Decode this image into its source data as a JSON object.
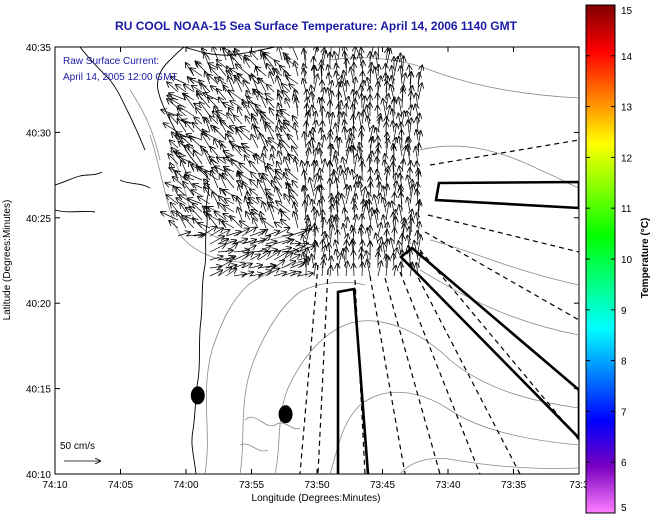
{
  "chart_data": {
    "type": "map",
    "title": "RU COOL  NOAA-15  Sea Surface Temperature:  April 14, 2006 1140 GMT",
    "xlabel": "Longitude (Degrees:Minutes)",
    "ylabel": "Latitude (Degrees:Minutes)",
    "x_ticks": [
      "74:10",
      "74:05",
      "74:00",
      "73:55",
      "73:50",
      "73:45",
      "73:40",
      "73:35",
      "73:3"
    ],
    "y_ticks": [
      "40:35",
      "40:30",
      "40:25",
      "40:20",
      "40:15",
      "40:10"
    ],
    "xlim_arcmin_west": [
      10,
      30
    ],
    "ylim_arcmin_north": [
      10,
      35
    ],
    "inset_title": "Raw Surface Current:",
    "inset_date": "April 14, 2005 12:00 GMT",
    "scale_label": "50 cm/s",
    "colorbar": {
      "label": "Temperature (°C)",
      "ticks": [
        "5",
        "6",
        "7",
        "8",
        "9",
        "10",
        "11",
        "12",
        "13",
        "14",
        "15"
      ],
      "range": [
        5,
        15
      ],
      "colormap": [
        "#ff80ff",
        "#7a00c0",
        "#0000ff",
        "#0080ff",
        "#00ffff",
        "#00ff80",
        "#00ff00",
        "#80ff00",
        "#ffff00",
        "#ff8000",
        "#ff0000",
        "#800000"
      ]
    },
    "markers": [
      {
        "name": "marker-west",
        "lon_west_arcmin": 59.1,
        "lat_north_arcmin": 14.6
      },
      {
        "name": "marker-east",
        "lon_west_arcmin": 52.4,
        "lat_north_arcmin": 13.5
      }
    ]
  }
}
